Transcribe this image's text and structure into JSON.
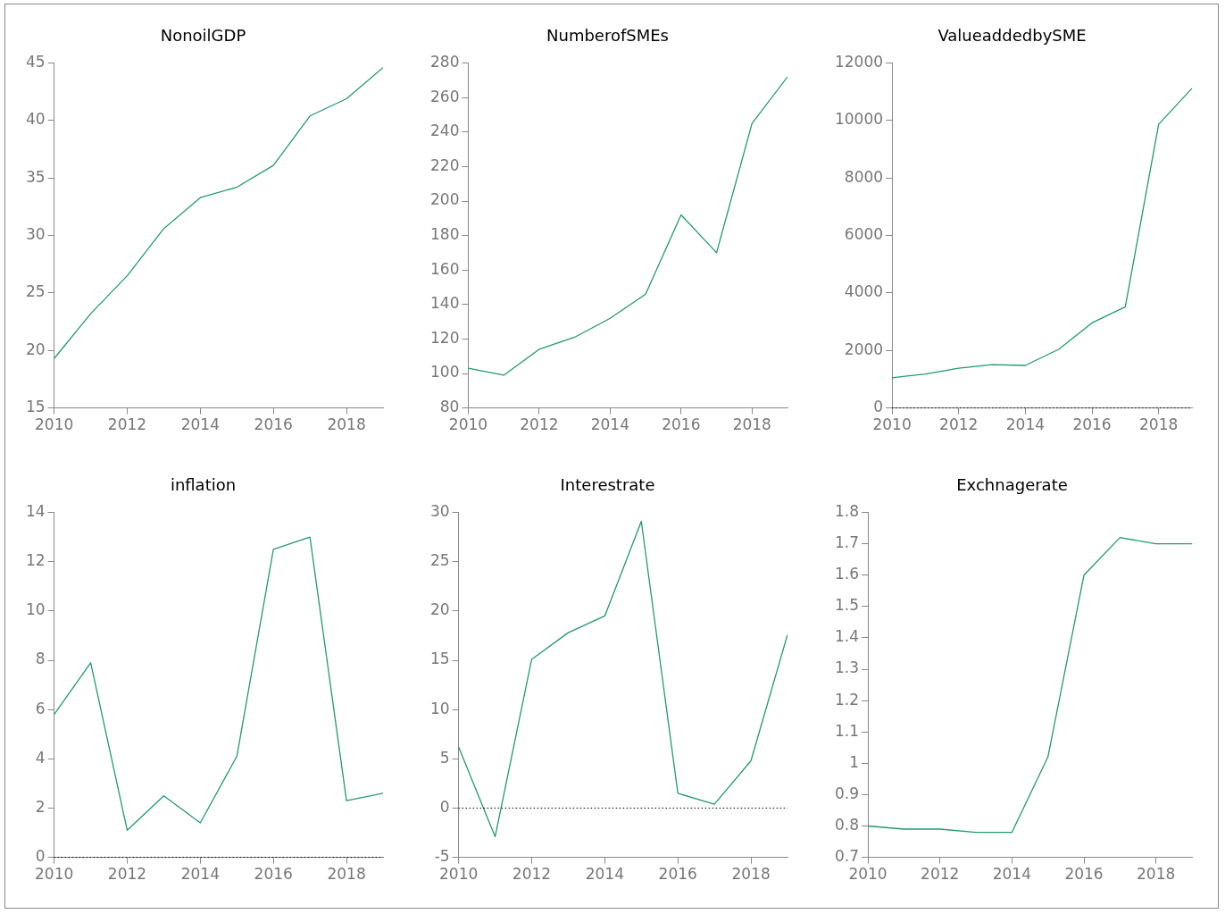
{
  "chart_data": [
    {
      "type": "line",
      "title": "NonoilGDP",
      "x": [
        2010,
        2011,
        2012,
        2013,
        2014,
        2015,
        2016,
        2017,
        2018,
        2019
      ],
      "series": [
        {
          "color": "#22996e",
          "values": [
            19.3,
            23.2,
            26.5,
            30.6,
            33.3,
            34.2,
            36.1,
            40.4,
            41.9,
            44.6
          ]
        }
      ],
      "xlim": [
        2010,
        2019
      ],
      "xticks": [
        2010,
        2012,
        2014,
        2016,
        2018
      ],
      "ylim": [
        15,
        45
      ],
      "yticks": [
        15,
        20,
        25,
        30,
        35,
        40,
        45
      ],
      "grid": false,
      "legend": false
    },
    {
      "type": "line",
      "title": "NumberofSMEs",
      "x": [
        2010,
        2011,
        2012,
        2013,
        2014,
        2015,
        2016,
        2017,
        2018,
        2019
      ],
      "series": [
        {
          "color": "#22996e",
          "values": [
            103,
            99,
            114,
            121,
            132,
            146,
            192,
            170,
            245,
            272
          ]
        }
      ],
      "xlim": [
        2010,
        2019
      ],
      "xticks": [
        2010,
        2012,
        2014,
        2016,
        2018
      ],
      "ylim": [
        80,
        280
      ],
      "yticks": [
        80,
        100,
        120,
        140,
        160,
        180,
        200,
        220,
        240,
        260,
        280
      ],
      "grid": false,
      "legend": false
    },
    {
      "type": "line",
      "title": "ValueaddedbySME",
      "x": [
        2010,
        2011,
        2012,
        2013,
        2014,
        2015,
        2016,
        2017,
        2018,
        2019
      ],
      "series": [
        {
          "color": "#22996e",
          "values": [
            1050,
            1180,
            1380,
            1510,
            1480,
            2040,
            2960,
            3520,
            9870,
            11120
          ]
        }
      ],
      "xlim": [
        2010,
        2019
      ],
      "xticks": [
        2010,
        2012,
        2014,
        2016,
        2018
      ],
      "ylim": [
        0,
        12000
      ],
      "yticks": [
        0,
        2000,
        4000,
        6000,
        8000,
        10000,
        12000
      ],
      "grid": false,
      "legend": false,
      "ref_lines": [
        {
          "axis": "y",
          "value": 0,
          "color": "#000000",
          "line_style": "dotted"
        }
      ]
    },
    {
      "type": "line",
      "title": "inflation",
      "x": [
        2010,
        2011,
        2012,
        2013,
        2014,
        2015,
        2016,
        2017,
        2018,
        2019
      ],
      "series": [
        {
          "color": "#22996e",
          "values": [
            5.8,
            7.9,
            1.1,
            2.5,
            1.4,
            4.1,
            12.5,
            13.0,
            2.3,
            2.6
          ]
        }
      ],
      "xlim": [
        2010,
        2019
      ],
      "xticks": [
        2010,
        2012,
        2014,
        2016,
        2018
      ],
      "ylim": [
        0,
        14
      ],
      "yticks": [
        0,
        2,
        4,
        6,
        8,
        10,
        12,
        14
      ],
      "grid": false,
      "legend": false,
      "ref_lines": [
        {
          "axis": "y",
          "value": 0,
          "color": "#000000",
          "line_style": "dotted"
        }
      ]
    },
    {
      "type": "line",
      "title": "Interestrate",
      "x": [
        2010,
        2011,
        2012,
        2013,
        2014,
        2015,
        2016,
        2017,
        2018,
        2019
      ],
      "series": [
        {
          "color": "#22996e",
          "values": [
            6.2,
            -2.9,
            15.1,
            17.8,
            19.5,
            29.1,
            1.5,
            0.4,
            4.8,
            17.6
          ]
        }
      ],
      "xlim": [
        2010,
        2019
      ],
      "xticks": [
        2010,
        2012,
        2014,
        2016,
        2018
      ],
      "ylim": [
        -5,
        30
      ],
      "yticks": [
        -5,
        0,
        5,
        10,
        15,
        20,
        25,
        30
      ],
      "grid": false,
      "legend": false,
      "ref_lines": [
        {
          "axis": "y",
          "value": 0,
          "color": "#000000",
          "line_style": "dotted"
        }
      ]
    },
    {
      "type": "line",
      "title": "Exchnagerate",
      "x": [
        2010,
        2011,
        2012,
        2013,
        2014,
        2015,
        2016,
        2017,
        2018,
        2019
      ],
      "series": [
        {
          "color": "#22996e",
          "values": [
            0.8,
            0.79,
            0.79,
            0.78,
            0.78,
            1.02,
            1.6,
            1.72,
            1.7,
            1.7
          ]
        }
      ],
      "xlim": [
        2010,
        2019
      ],
      "xticks": [
        2010,
        2012,
        2014,
        2016,
        2018
      ],
      "ylim": [
        0.7,
        1.8
      ],
      "yticks": [
        0.7,
        0.8,
        0.9,
        1,
        1.1,
        1.2,
        1.3,
        1.4,
        1.5,
        1.6,
        1.7,
        1.8
      ],
      "grid": false,
      "legend": false
    }
  ]
}
